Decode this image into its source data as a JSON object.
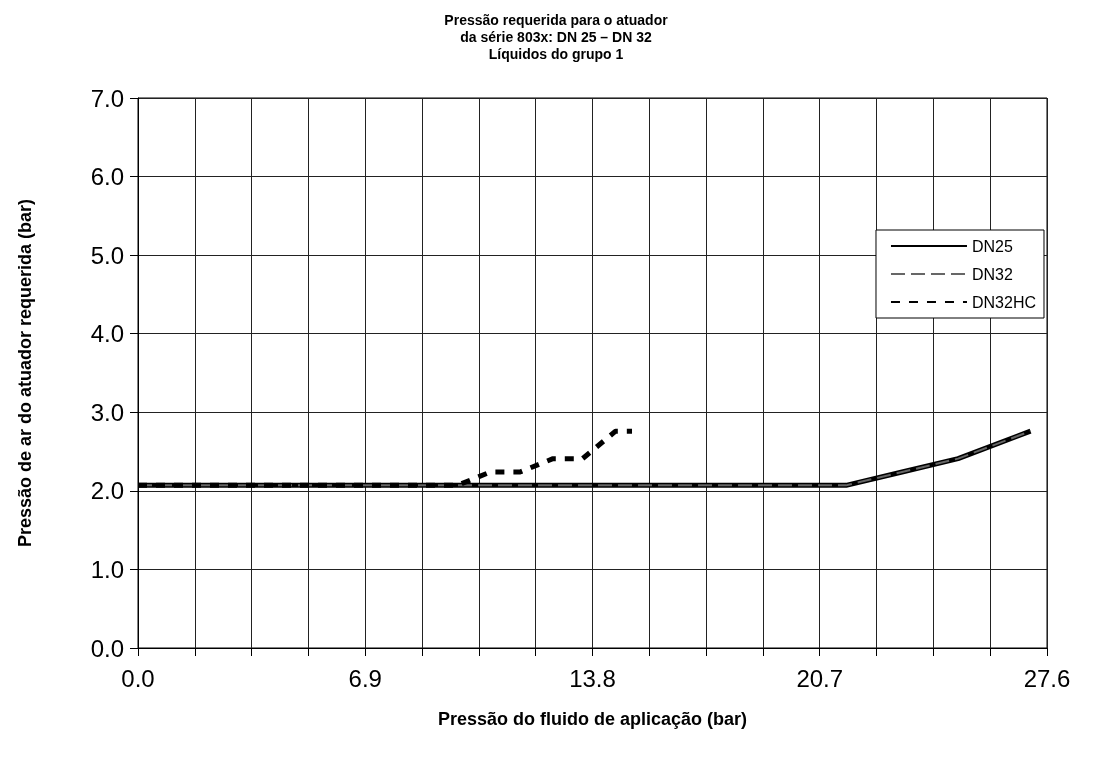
{
  "chart_data": {
    "type": "line",
    "title": "Pressão requerida para o atuador\nda série 803x: DN 25 – DN 32\nLíquidos do grupo 1",
    "xlabel": "Pressão do fluido de aplicação (bar)",
    "ylabel": "Pressão de ar do atuador requerida (bar)",
    "xlim": [
      0,
      27.6
    ],
    "xticks": [
      {
        "value": 0,
        "label": "0.0"
      },
      {
        "value": 1.725,
        "label": null
      },
      {
        "value": 3.45,
        "label": null
      },
      {
        "value": 5.175,
        "label": null
      },
      6.9,
      {
        "value": 8.625,
        "label": null
      },
      {
        "value": 10.35,
        "label": null
      },
      {
        "value": 12.075,
        "label": null
      },
      13.8,
      {
        "value": 15.525,
        "label": null
      },
      {
        "value": 17.25,
        "label": null
      },
      {
        "value": 18.975,
        "label": null
      },
      20.7,
      {
        "value": 22.425,
        "label": null
      },
      {
        "value": 24.15,
        "label": null
      },
      {
        "value": 25.875,
        "label": null
      },
      27.6
    ],
    "ylim": [
      0,
      7
    ],
    "yticks": [
      {
        "value": 0,
        "label": "0.0"
      },
      {
        "value": 1,
        "label": "1.0"
      },
      {
        "value": 2,
        "label": "2.0"
      },
      {
        "value": 3,
        "label": "3.0"
      },
      {
        "value": 4,
        "label": "4.0"
      },
      {
        "value": 5,
        "label": "5.0"
      },
      {
        "value": 6,
        "label": "6.0"
      },
      {
        "value": 7,
        "label": "7.0"
      }
    ],
    "grid": true,
    "legend": "top right",
    "marker": "none",
    "series": [
      {
        "name": "DN25",
        "color": "#000000",
        "line_style": "solid",
        "x": [
          0,
          21.5,
          23.2,
          24.9,
          27.1
        ],
        "values": [
          2.07,
          2.07,
          2.24,
          2.41,
          2.76
        ]
      },
      {
        "name": "DN32",
        "color": "#666666",
        "line_style": "dashed",
        "x": [
          0,
          21.5,
          23.2,
          24.9,
          27.1
        ],
        "values": [
          2.07,
          2.07,
          2.24,
          2.41,
          2.76
        ]
      },
      {
        "name": "DN32HC",
        "color": "#000000",
        "line_style": "dotted",
        "x": [
          0,
          9.7,
          10.7,
          11.6,
          12.6,
          13.5,
          14.5,
          15.0
        ],
        "values": [
          2.07,
          2.07,
          2.24,
          2.24,
          2.41,
          2.41,
          2.76,
          2.76
        ]
      }
    ]
  }
}
